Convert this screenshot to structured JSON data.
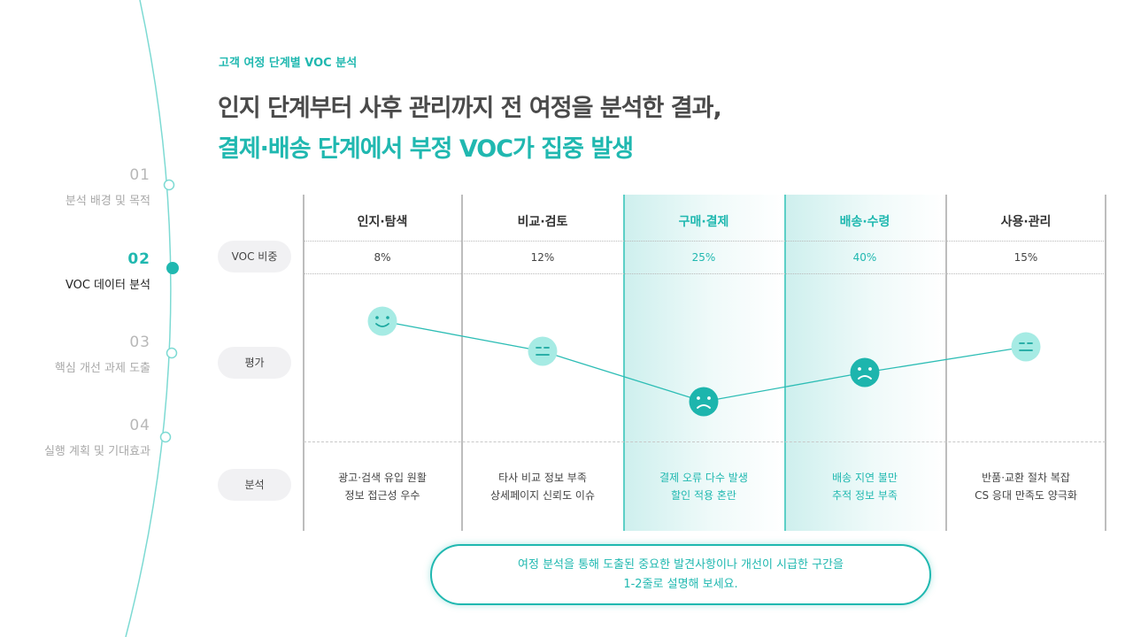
{
  "nav": {
    "items": [
      {
        "num": "01",
        "label": "분석 배경 및 목적",
        "active": false
      },
      {
        "num": "02",
        "label": "VOC 데이터 분석",
        "active": true
      },
      {
        "num": "03",
        "label": "핵심 개선 과제 도출",
        "active": false
      },
      {
        "num": "04",
        "label": "실행 계획 및 기대효과",
        "active": false
      }
    ]
  },
  "header": {
    "eyebrow": "고객 여정 단계별 VOC 분석",
    "title_line1": "인지 단계부터 사후 관리까지 전 여정을 분석한 결과,",
    "title_line2": "결제·배송 단계에서 부정 VOC가 집중 발생"
  },
  "rows": {
    "voc": "VOC 비중",
    "rating": "평가",
    "analysis": "분석"
  },
  "stages": [
    {
      "name": "인지·탐색",
      "voc": "8%",
      "rating": "positive",
      "analysis1": "광고·검색 유입 원활",
      "analysis2": "정보 접근성 우수",
      "highlight": false
    },
    {
      "name": "비교·검토",
      "voc": "12%",
      "rating": "neutral",
      "analysis1": "타사 비교 정보 부족",
      "analysis2": "상세페이지 신뢰도 이슈",
      "highlight": false
    },
    {
      "name": "구매·결제",
      "voc": "25%",
      "rating": "negative",
      "analysis1": "결제 오류 다수 발생",
      "analysis2": "할인 적용 혼란",
      "highlight": true
    },
    {
      "name": "배송·수령",
      "voc": "40%",
      "rating": "negative",
      "analysis1": "배송 지연 불만",
      "analysis2": "추적 정보 부족",
      "highlight": true
    },
    {
      "name": "사용·관리",
      "voc": "15%",
      "rating": "neutral",
      "analysis1": "반품·교환 절차 복잡",
      "analysis2": "CS 응대 만족도 양극화",
      "highlight": false
    }
  ],
  "note": {
    "line1": "여정 분석을 통해 도출된 중요한 발견사항이나 개선이 시급한 구간을",
    "line2": "1-2줄로 설명해 보세요."
  },
  "colors": {
    "accent": "#20b8b0",
    "face_light": "#a6ebe4",
    "face_dark": "#1db5ad"
  }
}
